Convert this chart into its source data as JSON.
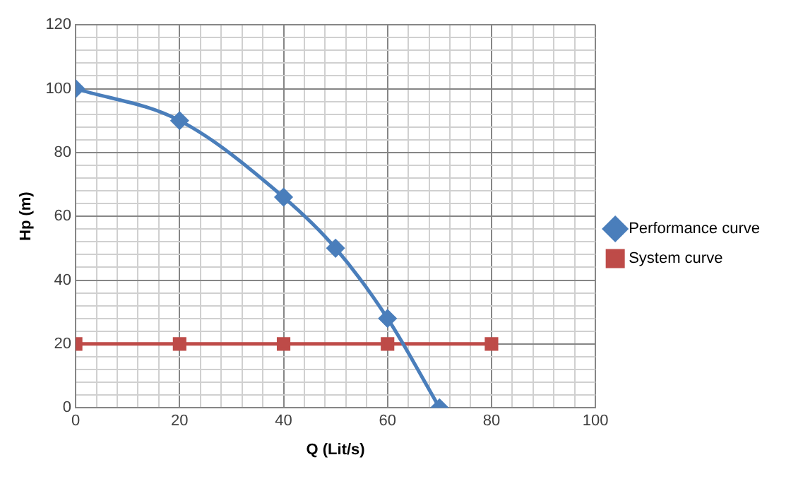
{
  "chart_data": {
    "type": "line",
    "xlabel": "Q (Lit/s)",
    "ylabel": "Hp (m)",
    "series": [
      {
        "name": "Performance curve",
        "color": "#4a7ebb",
        "marker": "diamond",
        "x": [
          0,
          20,
          40,
          50,
          60,
          70
        ],
        "values": [
          100,
          90,
          66,
          50,
          28,
          0
        ]
      },
      {
        "name": "System curve",
        "color": "#be4b48",
        "marker": "square",
        "x": [
          0,
          20,
          40,
          60,
          80
        ],
        "values": [
          20,
          20,
          20,
          20,
          20
        ]
      }
    ],
    "xlim": [
      0,
      100
    ],
    "xticks": [
      0,
      {
        "value": 4,
        "label": null
      },
      {
        "value": 8,
        "label": null
      },
      {
        "value": 12,
        "label": null
      },
      {
        "value": 16,
        "label": null
      },
      20,
      {
        "value": 24,
        "label": null
      },
      {
        "value": 28,
        "label": null
      },
      {
        "value": 32,
        "label": null
      },
      {
        "value": 36,
        "label": null
      },
      40,
      {
        "value": 44,
        "label": null
      },
      {
        "value": 48,
        "label": null
      },
      {
        "value": 52,
        "label": null
      },
      {
        "value": 56,
        "label": null
      },
      60,
      {
        "value": 64,
        "label": null
      },
      {
        "value": 68,
        "label": null
      },
      {
        "value": 72,
        "label": null
      },
      {
        "value": 76,
        "label": null
      },
      80,
      {
        "value": 84,
        "label": null
      },
      {
        "value": 88,
        "label": null
      },
      {
        "value": 92,
        "label": null
      },
      {
        "value": 96,
        "label": null
      },
      100
    ],
    "ylim": [
      0,
      120
    ],
    "yticks": [
      0,
      {
        "value": 4,
        "label": null
      },
      {
        "value": 8,
        "label": null
      },
      {
        "value": 12,
        "label": null
      },
      {
        "value": 16,
        "label": null
      },
      20,
      {
        "value": 24,
        "label": null
      },
      {
        "value": 28,
        "label": null
      },
      {
        "value": 32,
        "label": null
      },
      {
        "value": 36,
        "label": null
      },
      40,
      {
        "value": 44,
        "label": null
      },
      {
        "value": 48,
        "label": null
      },
      {
        "value": 52,
        "label": null
      },
      {
        "value": 56,
        "label": null
      },
      60,
      {
        "value": 64,
        "label": null
      },
      {
        "value": 68,
        "label": null
      },
      {
        "value": 72,
        "label": null
      },
      {
        "value": 76,
        "label": null
      },
      80,
      {
        "value": 84,
        "label": null
      },
      {
        "value": 88,
        "label": null
      },
      {
        "value": 92,
        "label": null
      },
      {
        "value": 96,
        "label": null
      },
      100,
      {
        "value": 104,
        "label": null
      },
      {
        "value": 108,
        "label": null
      },
      {
        "value": 112,
        "label": null
      },
      {
        "value": 116,
        "label": null
      },
      120
    ],
    "grid": true,
    "legend": "right",
    "line_style": "solid"
  }
}
